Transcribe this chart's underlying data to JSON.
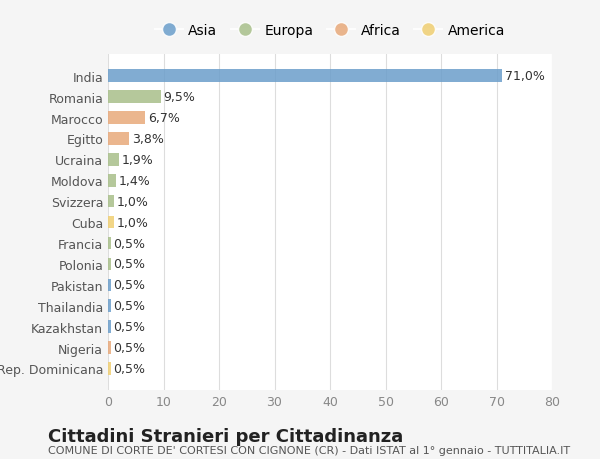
{
  "categories": [
    "India",
    "Romania",
    "Marocco",
    "Egitto",
    "Ucraina",
    "Moldova",
    "Svizzera",
    "Cuba",
    "Francia",
    "Polonia",
    "Pakistan",
    "Thailandia",
    "Kazakhstan",
    "Nigeria",
    "Rep. Dominicana"
  ],
  "values": [
    71.0,
    9.5,
    6.7,
    3.8,
    1.9,
    1.4,
    1.0,
    1.0,
    0.5,
    0.5,
    0.5,
    0.5,
    0.5,
    0.5,
    0.5
  ],
  "labels": [
    "71,0%",
    "9,5%",
    "6,7%",
    "3,8%",
    "1,9%",
    "1,4%",
    "1,0%",
    "1,0%",
    "0,5%",
    "0,5%",
    "0,5%",
    "0,5%",
    "0,5%",
    "0,5%",
    "0,5%"
  ],
  "continents": [
    "Asia",
    "Europa",
    "Africa",
    "Africa",
    "Europa",
    "Europa",
    "Europa",
    "America",
    "Europa",
    "Europa",
    "Asia",
    "Asia",
    "Asia",
    "Africa",
    "America"
  ],
  "continent_colors": {
    "Asia": "#6b9ecb",
    "Europa": "#a8bf8a",
    "Africa": "#e8a97a",
    "America": "#f0cf72"
  },
  "legend_order": [
    "Asia",
    "Europa",
    "Africa",
    "America"
  ],
  "title": "Cittadini Stranieri per Cittadinanza",
  "subtitle": "COMUNE DI CORTE DE' CORTESI CON CIGNONE (CR) - Dati ISTAT al 1° gennaio - TUTTITALIA.IT",
  "xlim": [
    0,
    80
  ],
  "xticks": [
    0,
    10,
    20,
    30,
    40,
    50,
    60,
    70,
    80
  ],
  "bg_color": "#f5f5f5",
  "plot_bg_color": "#ffffff",
  "grid_color": "#dddddd",
  "bar_height": 0.6,
  "title_fontsize": 13,
  "subtitle_fontsize": 8,
  "tick_fontsize": 9,
  "label_fontsize": 9,
  "legend_fontsize": 10
}
